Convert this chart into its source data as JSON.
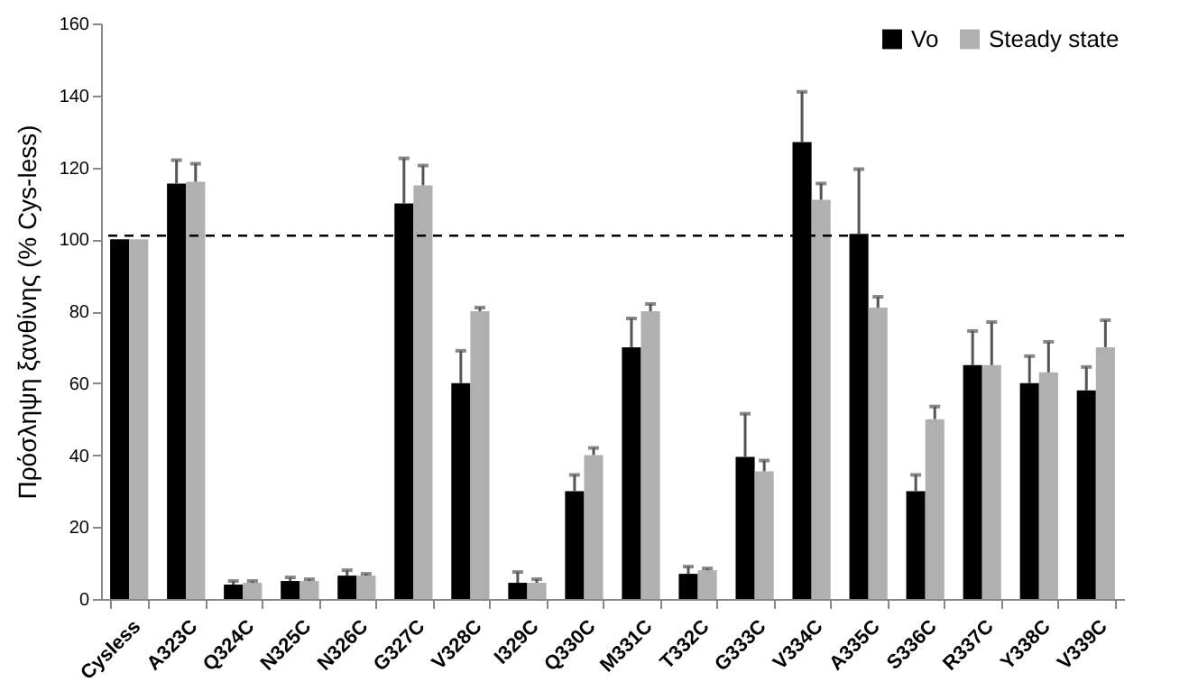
{
  "chart_data": {
    "type": "bar",
    "ylabel": "Πρόσληψη ξανθίνης  (% Cys-less)",
    "categories": [
      "Cysless",
      "A323C",
      "Q324C",
      "N325C",
      "N326C",
      "G327C",
      "V328C",
      "I329C",
      "Q330C",
      "M331C",
      "T332C",
      "G333C",
      "V334C",
      "A335C",
      "S336C",
      "R337C",
      "Y338C",
      "V339C"
    ],
    "series": [
      {
        "name": "Vo",
        "color": "#000000",
        "values": [
          100,
          115.5,
          4,
          5,
          6.5,
          110,
          60,
          4.5,
          30,
          70,
          7,
          39.5,
          127,
          101.5,
          30,
          65,
          60,
          58
        ],
        "errors": [
          null,
          [
            115.5,
            122
          ],
          [
            4,
            5
          ],
          [
            5,
            6
          ],
          [
            6.5,
            8
          ],
          [
            110,
            122.5
          ],
          [
            60,
            69
          ],
          [
            4.5,
            7.5
          ],
          [
            30,
            34.5
          ],
          [
            70,
            78
          ],
          [
            7,
            9
          ],
          [
            39.5,
            51.5
          ],
          [
            127,
            141
          ],
          [
            101.5,
            119.5
          ],
          [
            30,
            34.5
          ],
          [
            65,
            74.5
          ],
          [
            60,
            67.5
          ],
          [
            58,
            64.5
          ]
        ]
      },
      {
        "name": "Steady state",
        "color": "#b0b0b0",
        "values": [
          100,
          116,
          4.5,
          5,
          6.5,
          115,
          80,
          4.5,
          40,
          80,
          8,
          35.5,
          111,
          81,
          50,
          65,
          63,
          70
        ],
        "errors": [
          null,
          [
            116,
            121
          ],
          [
            4.5,
            5
          ],
          [
            5,
            5.5
          ],
          [
            6.5,
            7
          ],
          [
            115,
            120.5
          ],
          [
            80,
            81
          ],
          [
            4.5,
            5.5
          ],
          [
            40,
            42
          ],
          [
            80,
            82
          ],
          [
            8,
            8.5
          ],
          [
            35.5,
            38.5
          ],
          [
            111,
            115.5
          ],
          [
            81,
            84
          ],
          [
            50,
            53.5
          ],
          [
            65,
            77
          ],
          [
            63,
            71.5
          ],
          [
            70,
            77.5
          ]
        ]
      }
    ],
    "ylim": [
      0,
      160
    ],
    "yticks": [
      0,
      20,
      40,
      60,
      80,
      100,
      120,
      140,
      160
    ],
    "ref_lines": [
      {
        "axis": "y",
        "value": 101,
        "line_style": "dashed",
        "color": "#000000"
      }
    ],
    "legend": "top right",
    "grid": false
  }
}
